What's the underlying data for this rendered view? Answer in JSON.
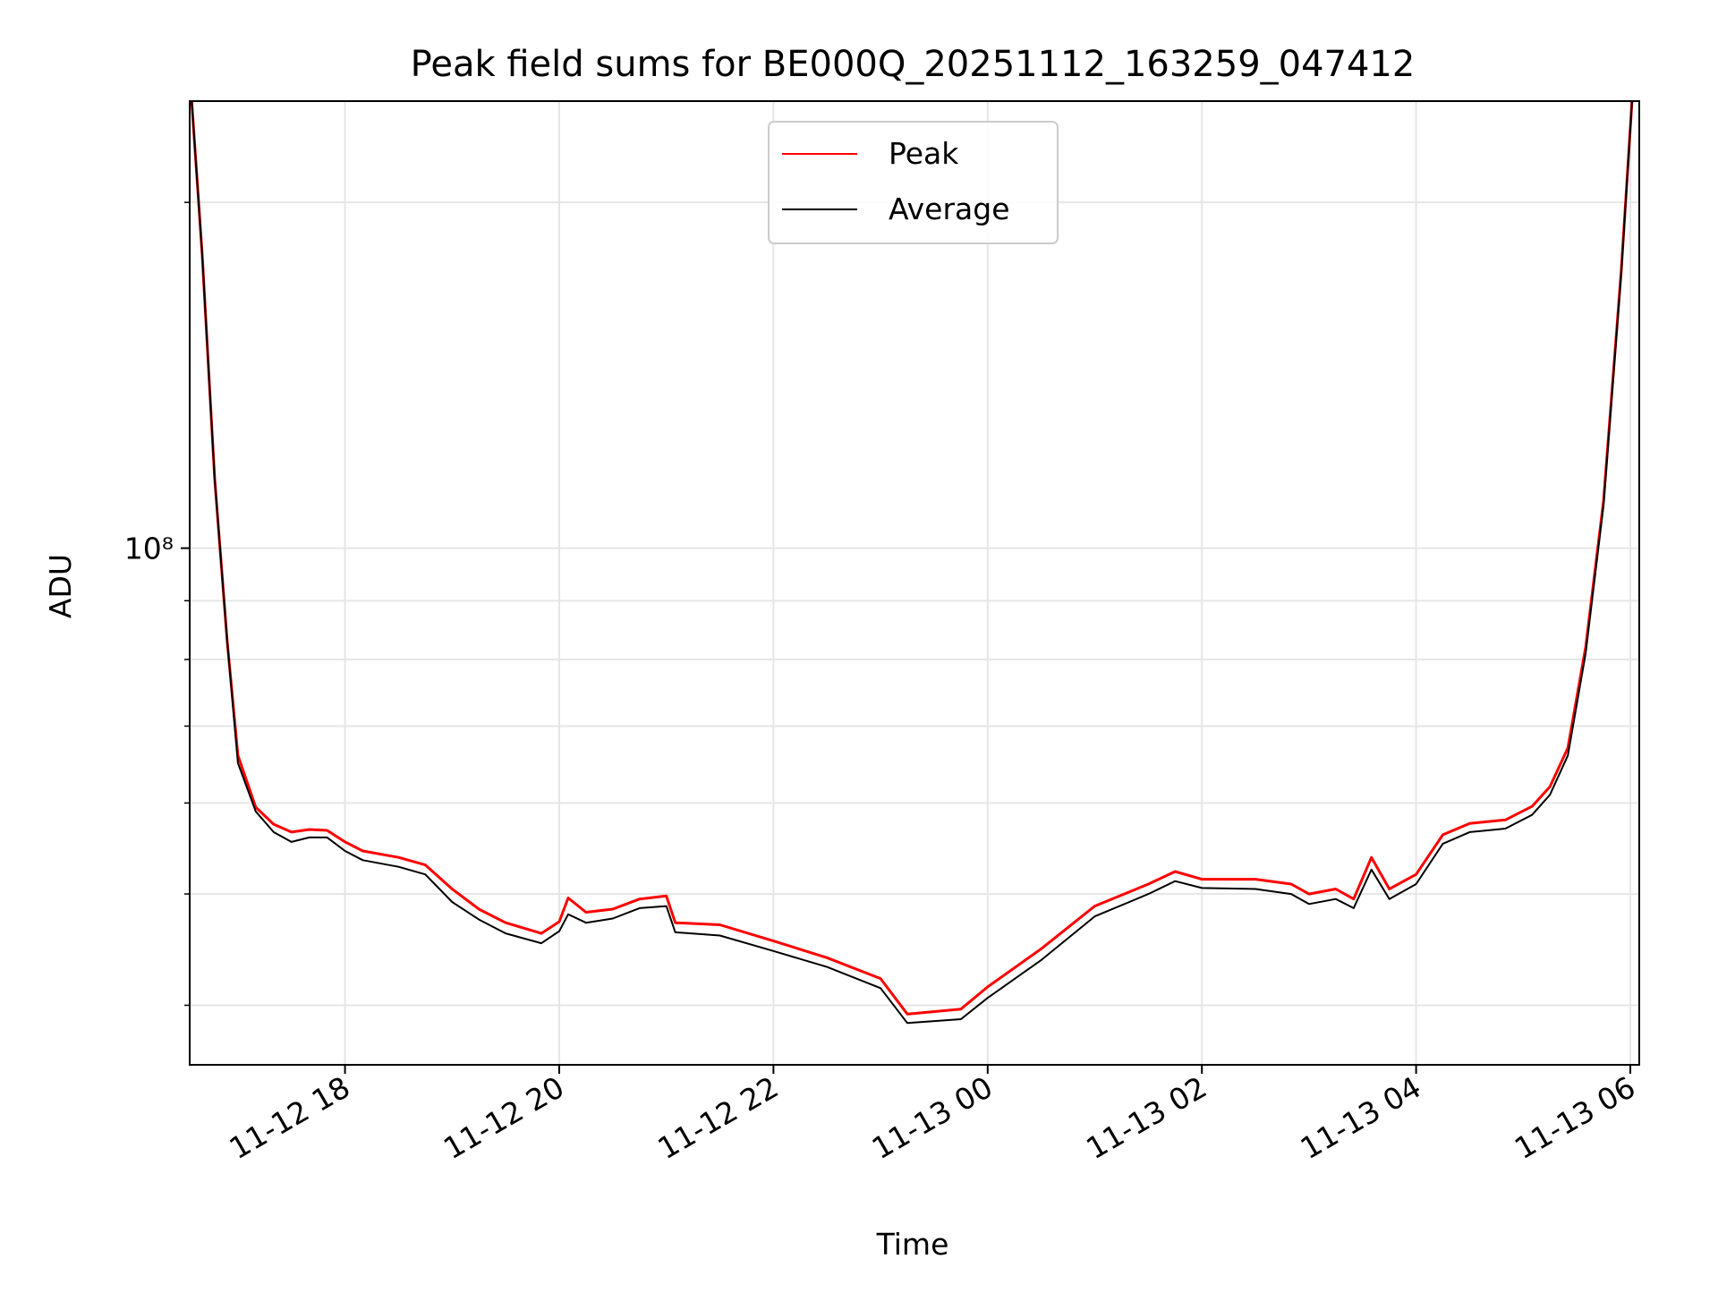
{
  "chart_data": {
    "type": "line",
    "title": "Peak field sums for BE000Q_20251112_163259_047412",
    "xlabel": "Time",
    "ylabel": "ADU",
    "x_axis": {
      "kind": "datetime",
      "xlim": [
        "2025-11-12 16:33",
        "2025-11-13 06:05"
      ],
      "ticks": [
        {
          "t": "2025-11-12 18:00",
          "label": "11-12 18"
        },
        {
          "t": "2025-11-12 20:00",
          "label": "11-12 20"
        },
        {
          "t": "2025-11-12 22:00",
          "label": "11-12 22"
        },
        {
          "t": "2025-11-13 00:00",
          "label": "11-13 00"
        },
        {
          "t": "2025-11-13 02:00",
          "label": "11-13 02"
        },
        {
          "t": "2025-11-13 04:00",
          "label": "11-13 04"
        },
        {
          "t": "2025-11-13 06:00",
          "label": "11-13 06"
        }
      ]
    },
    "y_axis": {
      "scale": "log",
      "ylim": [
        35500000.0,
        245000000.0
      ],
      "major_ticks": [
        {
          "value": 100000000.0,
          "label": "10⁸"
        }
      ],
      "minor_ticks": [
        40000000.0,
        50000000.0,
        60000000.0,
        70000000.0,
        80000000.0,
        90000000.0,
        200000000.0
      ]
    },
    "grid": true,
    "legend": {
      "position": "upper center",
      "entries": [
        "Peak",
        "Average"
      ]
    },
    "series": [
      {
        "name": "Peak",
        "color": "#ff0000",
        "points": [
          [
            "2025-11-12 16:33",
            260000000.0
          ],
          [
            "2025-11-12 16:40",
            180000000.0
          ],
          [
            "2025-11-12 16:47",
            115000000.0
          ],
          [
            "2025-11-12 16:54",
            83000000.0
          ],
          [
            "2025-11-12 17:00",
            66000000.0
          ],
          [
            "2025-11-12 17:10",
            59500000.0
          ],
          [
            "2025-11-12 17:20",
            57500000.0
          ],
          [
            "2025-11-12 17:30",
            56600000.0
          ],
          [
            "2025-11-12 17:40",
            56900000.0
          ],
          [
            "2025-11-12 17:50",
            56800000.0
          ],
          [
            "2025-11-12 18:00",
            55500000.0
          ],
          [
            "2025-11-12 18:10",
            54500000.0
          ],
          [
            "2025-11-12 18:30",
            53800000.0
          ],
          [
            "2025-11-12 18:45",
            53000000.0
          ],
          [
            "2025-11-12 19:00",
            50500000.0
          ],
          [
            "2025-11-12 19:15",
            48500000.0
          ],
          [
            "2025-11-12 19:30",
            47200000.0
          ],
          [
            "2025-11-12 19:50",
            46200000.0
          ],
          [
            "2025-11-12 20:00",
            47300000.0
          ],
          [
            "2025-11-12 20:05",
            49600000.0
          ],
          [
            "2025-11-12 20:15",
            48200000.0
          ],
          [
            "2025-11-12 20:30",
            48500000.0
          ],
          [
            "2025-11-12 20:45",
            49500000.0
          ],
          [
            "2025-11-12 21:00",
            49800000.0
          ],
          [
            "2025-11-12 21:05",
            47200000.0
          ],
          [
            "2025-11-12 21:30",
            47000000.0
          ],
          [
            "2025-11-12 22:00",
            45500000.0
          ],
          [
            "2025-11-12 22:30",
            44000000.0
          ],
          [
            "2025-11-12 23:00",
            42200000.0
          ],
          [
            "2025-11-12 23:15",
            39300000.0
          ],
          [
            "2025-11-12 23:45",
            39700000.0
          ],
          [
            "2025-11-13 00:00",
            41500000.0
          ],
          [
            "2025-11-13 00:30",
            44800000.0
          ],
          [
            "2025-11-13 01:00",
            48800000.0
          ],
          [
            "2025-11-13 01:30",
            51000000.0
          ],
          [
            "2025-11-13 01:45",
            52300000.0
          ],
          [
            "2025-11-13 02:00",
            51500000.0
          ],
          [
            "2025-11-13 02:30",
            51500000.0
          ],
          [
            "2025-11-13 02:50",
            51000000.0
          ],
          [
            "2025-11-13 03:00",
            50000000.0
          ],
          [
            "2025-11-13 03:15",
            50500000.0
          ],
          [
            "2025-11-13 03:25",
            49500000.0
          ],
          [
            "2025-11-13 03:35",
            53800000.0
          ],
          [
            "2025-11-13 03:45",
            50500000.0
          ],
          [
            "2025-11-13 04:00",
            52000000.0
          ],
          [
            "2025-11-13 04:15",
            56300000.0
          ],
          [
            "2025-11-13 04:30",
            57600000.0
          ],
          [
            "2025-11-13 04:50",
            58000000.0
          ],
          [
            "2025-11-13 05:05",
            59600000.0
          ],
          [
            "2025-11-13 05:15",
            62000000.0
          ],
          [
            "2025-11-13 05:25",
            67000000.0
          ],
          [
            "2025-11-13 05:35",
            82000000.0
          ],
          [
            "2025-11-13 05:45",
            110000000.0
          ],
          [
            "2025-11-13 05:55",
            175000000.0
          ],
          [
            "2025-11-13 06:02",
            260000000.0
          ]
        ]
      },
      {
        "name": "Average",
        "color": "#000000",
        "points": [
          [
            "2025-11-12 16:33",
            260000000.0
          ],
          [
            "2025-11-12 16:40",
            180000000.0
          ],
          [
            "2025-11-12 16:47",
            115000000.0
          ],
          [
            "2025-11-12 16:54",
            83000000.0
          ],
          [
            "2025-11-12 17:00",
            65000000.0
          ],
          [
            "2025-11-12 17:10",
            59000000.0
          ],
          [
            "2025-11-12 17:20",
            56600000.0
          ],
          [
            "2025-11-12 17:30",
            55500000.0
          ],
          [
            "2025-11-12 17:40",
            56000000.0
          ],
          [
            "2025-11-12 17:50",
            56000000.0
          ],
          [
            "2025-11-12 18:00",
            54500000.0
          ],
          [
            "2025-11-12 18:10",
            53500000.0
          ],
          [
            "2025-11-12 18:30",
            52800000.0
          ],
          [
            "2025-11-12 18:45",
            52000000.0
          ],
          [
            "2025-11-12 19:00",
            49200000.0
          ],
          [
            "2025-11-12 19:15",
            47500000.0
          ],
          [
            "2025-11-12 19:30",
            46200000.0
          ],
          [
            "2025-11-12 19:50",
            45300000.0
          ],
          [
            "2025-11-12 20:00",
            46400000.0
          ],
          [
            "2025-11-12 20:05",
            48000000.0
          ],
          [
            "2025-11-12 20:15",
            47200000.0
          ],
          [
            "2025-11-12 20:30",
            47600000.0
          ],
          [
            "2025-11-12 20:45",
            48600000.0
          ],
          [
            "2025-11-12 21:00",
            48800000.0
          ],
          [
            "2025-11-12 21:05",
            46300000.0
          ],
          [
            "2025-11-12 21:30",
            46000000.0
          ],
          [
            "2025-11-12 22:00",
            44600000.0
          ],
          [
            "2025-11-12 22:30",
            43200000.0
          ],
          [
            "2025-11-12 23:00",
            41400000.0
          ],
          [
            "2025-11-12 23:15",
            38600000.0
          ],
          [
            "2025-11-12 23:45",
            38900000.0
          ],
          [
            "2025-11-13 00:00",
            40600000.0
          ],
          [
            "2025-11-13 00:30",
            43800000.0
          ],
          [
            "2025-11-13 01:00",
            47800000.0
          ],
          [
            "2025-11-13 01:30",
            50000000.0
          ],
          [
            "2025-11-13 01:45",
            51300000.0
          ],
          [
            "2025-11-13 02:00",
            50600000.0
          ],
          [
            "2025-11-13 02:30",
            50500000.0
          ],
          [
            "2025-11-13 02:50",
            50000000.0
          ],
          [
            "2025-11-13 03:00",
            49000000.0
          ],
          [
            "2025-11-13 03:15",
            49500000.0
          ],
          [
            "2025-11-13 03:25",
            48600000.0
          ],
          [
            "2025-11-13 03:35",
            52500000.0
          ],
          [
            "2025-11-13 03:45",
            49500000.0
          ],
          [
            "2025-11-13 04:00",
            51000000.0
          ],
          [
            "2025-11-13 04:15",
            55300000.0
          ],
          [
            "2025-11-13 04:30",
            56600000.0
          ],
          [
            "2025-11-13 04:50",
            57000000.0
          ],
          [
            "2025-11-13 05:05",
            58600000.0
          ],
          [
            "2025-11-13 05:15",
            61000000.0
          ],
          [
            "2025-11-13 05:25",
            66000000.0
          ],
          [
            "2025-11-13 05:35",
            81000000.0
          ],
          [
            "2025-11-13 05:45",
            109000000.0
          ],
          [
            "2025-11-13 05:55",
            174000000.0
          ],
          [
            "2025-11-13 06:02",
            260000000.0
          ]
        ]
      }
    ]
  }
}
